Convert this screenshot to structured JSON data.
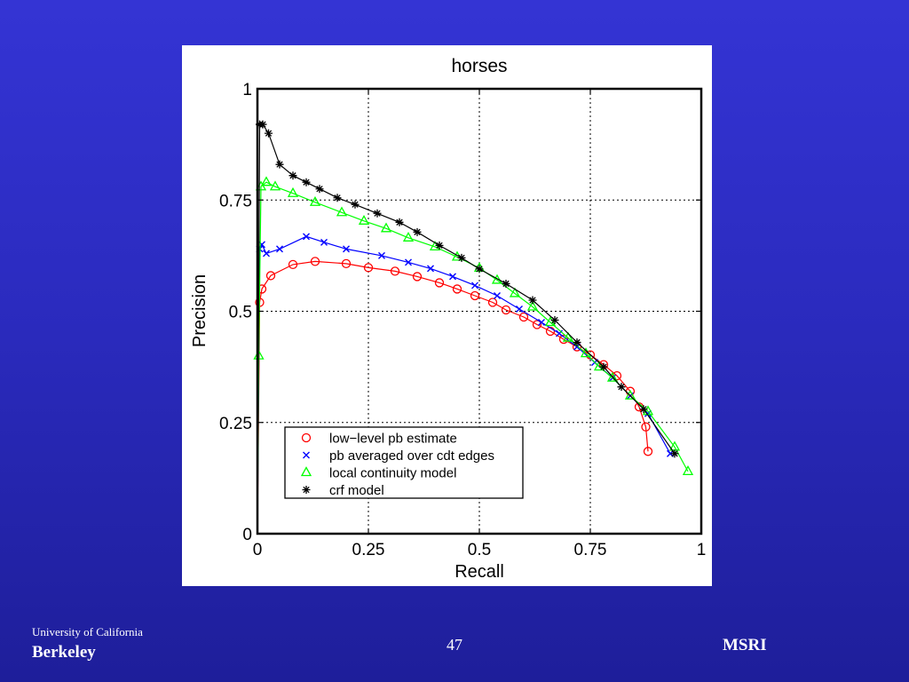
{
  "slide": {
    "footer_left_line1": "University of California",
    "footer_left_line2": "Berkeley",
    "page_number": "47",
    "footer_right": "MSRI",
    "background_color": "#2b2bbf"
  },
  "chart_data": {
    "type": "line",
    "title": "horses",
    "xlabel": "Recall",
    "ylabel": "Precision",
    "xlim": [
      0,
      1
    ],
    "ylim": [
      0,
      1
    ],
    "xticks": [
      0,
      0.25,
      0.5,
      0.75,
      1
    ],
    "xtick_labels": [
      "0",
      "0.25",
      "0.5",
      "0.75",
      "1"
    ],
    "yticks": [
      0,
      0.25,
      0.5,
      0.75,
      1
    ],
    "ytick_labels": [
      "0",
      "0.25",
      "0.5",
      "0.75",
      "1"
    ],
    "grid": true,
    "legend_position": "bottom-left",
    "series": [
      {
        "name": "low−level pb estimate",
        "color": "#ff0000",
        "marker": "circle",
        "x": [
          0,
          0.005,
          0.01,
          0.03,
          0.08,
          0.13,
          0.2,
          0.25,
          0.31,
          0.36,
          0.41,
          0.45,
          0.49,
          0.53,
          0.56,
          0.6,
          0.63,
          0.66,
          0.69,
          0.72,
          0.75,
          0.78,
          0.81,
          0.84,
          0.86,
          0.875,
          0.88
        ],
        "y": [
          0,
          0.52,
          0.55,
          0.58,
          0.605,
          0.612,
          0.607,
          0.598,
          0.59,
          0.578,
          0.564,
          0.55,
          0.535,
          0.52,
          0.503,
          0.487,
          0.47,
          0.455,
          0.437,
          0.42,
          0.402,
          0.38,
          0.355,
          0.32,
          0.285,
          0.24,
          0.185
        ]
      },
      {
        "name": "pb averaged over cdt edges",
        "color": "#0000ff",
        "marker": "x",
        "x": [
          0,
          0.005,
          0.01,
          0.02,
          0.05,
          0.11,
          0.15,
          0.2,
          0.28,
          0.34,
          0.39,
          0.44,
          0.49,
          0.54,
          0.59,
          0.64,
          0.68,
          0.72,
          0.76,
          0.8,
          0.84,
          0.88,
          0.93
        ],
        "y": [
          0,
          0.64,
          0.65,
          0.63,
          0.64,
          0.668,
          0.655,
          0.64,
          0.625,
          0.61,
          0.596,
          0.578,
          0.558,
          0.535,
          0.505,
          0.475,
          0.45,
          0.42,
          0.385,
          0.35,
          0.31,
          0.27,
          0.18
        ]
      },
      {
        "name": "local continuity model",
        "color": "#00ff00",
        "marker": "triangle",
        "x": [
          0,
          0.003,
          0.008,
          0.02,
          0.04,
          0.08,
          0.13,
          0.19,
          0.24,
          0.29,
          0.34,
          0.4,
          0.45,
          0.5,
          0.54,
          0.58,
          0.62,
          0.66,
          0.7,
          0.74,
          0.77,
          0.8,
          0.84,
          0.88,
          0.94,
          0.97
        ],
        "y": [
          0,
          0.4,
          0.78,
          0.79,
          0.78,
          0.765,
          0.745,
          0.722,
          0.703,
          0.686,
          0.665,
          0.645,
          0.622,
          0.597,
          0.57,
          0.54,
          0.51,
          0.475,
          0.44,
          0.405,
          0.375,
          0.35,
          0.31,
          0.275,
          0.195,
          0.14
        ]
      },
      {
        "name": "crf model",
        "color": "#000000",
        "marker": "star",
        "x": [
          0,
          0.005,
          0.012,
          0.025,
          0.05,
          0.08,
          0.11,
          0.14,
          0.18,
          0.22,
          0.27,
          0.32,
          0.36,
          0.41,
          0.46,
          0.5,
          0.56,
          0.62,
          0.67,
          0.72,
          0.78,
          0.82,
          0.87,
          0.94
        ],
        "y": [
          0,
          0.92,
          0.92,
          0.9,
          0.83,
          0.805,
          0.79,
          0.775,
          0.755,
          0.74,
          0.72,
          0.7,
          0.678,
          0.648,
          0.62,
          0.595,
          0.562,
          0.525,
          0.48,
          0.43,
          0.375,
          0.33,
          0.28,
          0.18
        ]
      }
    ]
  }
}
